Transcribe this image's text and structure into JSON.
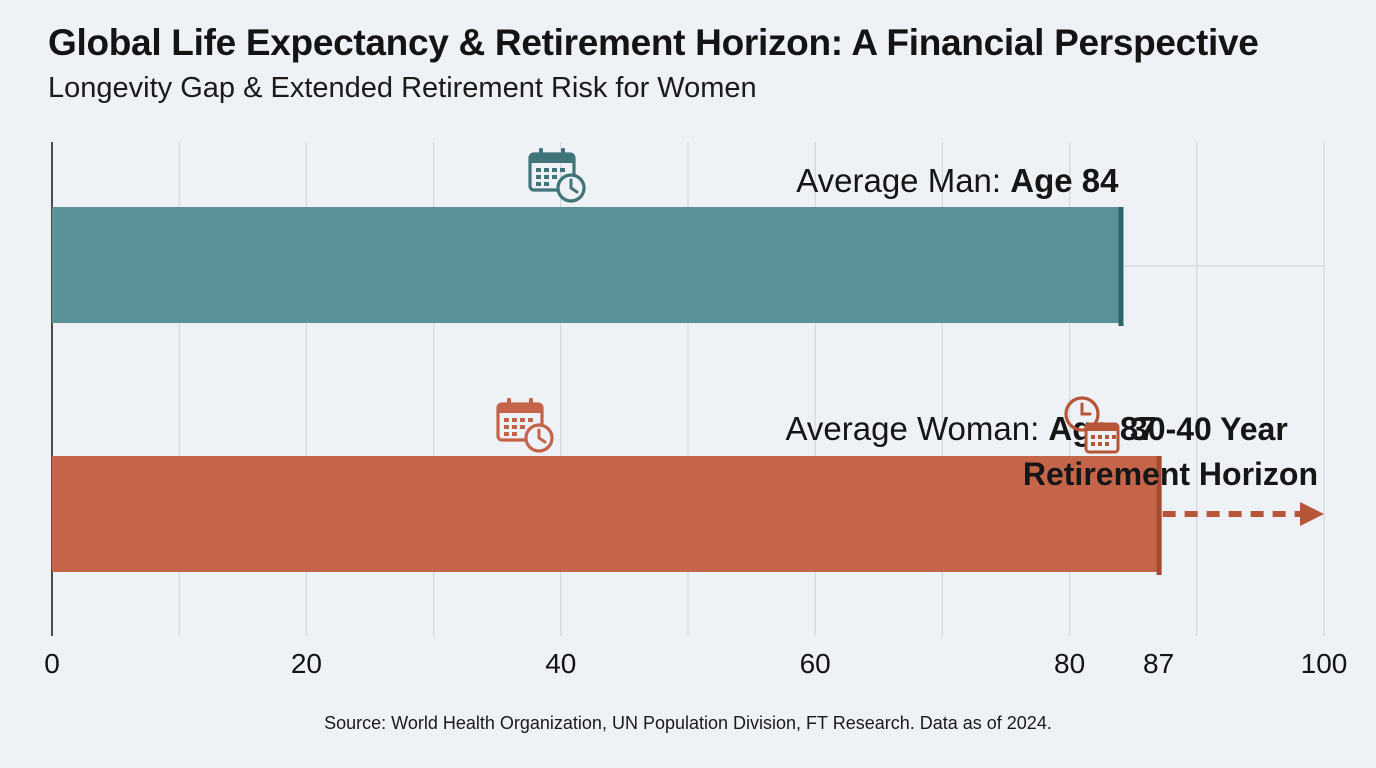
{
  "chart_data": {
    "type": "bar",
    "orientation": "horizontal",
    "title": "Global Life Expectancy & Retirement Horizon: A Financial Perspective",
    "subtitle": "Longevity Gap & Extended Retirement Risk for Women",
    "xlim": [
      0,
      100
    ],
    "tick_values": [
      0,
      20,
      40,
      60,
      80,
      87,
      100
    ],
    "tick_labels": [
      "0",
      "20",
      "40",
      "60",
      "80",
      "87",
      "100"
    ],
    "grid": true,
    "bars": [
      {
        "label_prefix": "Average Man: ",
        "label_value": "Age 84",
        "value": 84,
        "color": "#5b9298",
        "edge_color": "#2f6468",
        "icon": "calendar-clock-icon",
        "icon_color": "#3f7479"
      },
      {
        "label_prefix": "Average Woman: ",
        "label_value": "Age 87",
        "value": 87,
        "color": "#c4654a",
        "edge_color": "#a64a30",
        "icon": "calendar-clock-icon",
        "icon_color": "#c4654a"
      }
    ],
    "annotation": {
      "line1": "30-40 Year",
      "line2": "Retirement Horizon",
      "arrow_from": 87,
      "arrow_to": 100,
      "icon": "clock-calendar-icon",
      "color": "#b75537"
    },
    "source": "Source: World Health Organization, UN Population Division, FT Research. Data as of 2024."
  }
}
